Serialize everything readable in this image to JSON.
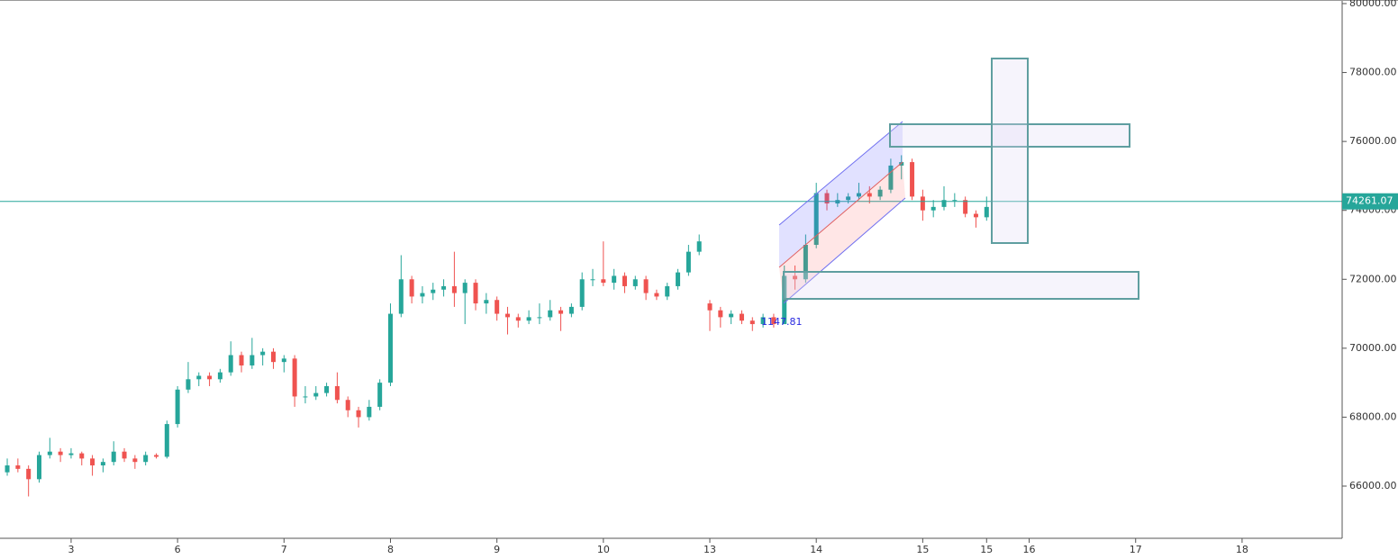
{
  "chart_data": {
    "type": "candlestick",
    "colors": {
      "up": "#26a69a",
      "down": "#ef5350",
      "price_line": "#26a69a"
    },
    "xlim": [
      -0.668,
      11.94
    ],
    "ylim": [
      64485,
      80104
    ],
    "xticks": [
      {
        "value": 0,
        "label": "3"
      },
      {
        "value": 1,
        "label": "6"
      },
      {
        "value": 2,
        "label": "7"
      },
      {
        "value": 3,
        "label": "8"
      },
      {
        "value": 4,
        "label": "9"
      },
      {
        "value": 5,
        "label": "10"
      },
      {
        "value": 6,
        "label": "13"
      },
      {
        "value": 7,
        "label": "14"
      },
      {
        "value": 8,
        "label": "15"
      },
      {
        "value": 8.6,
        "label": "15"
      },
      {
        "value": 9,
        "label": "16"
      },
      {
        "value": 10,
        "label": "17"
      },
      {
        "value": 11,
        "label": "18"
      }
    ],
    "yticks": [
      {
        "value": 66000,
        "label": "66000.00"
      },
      {
        "value": 68000,
        "label": "68000.00"
      },
      {
        "value": 70000,
        "label": "70000.00"
      },
      {
        "value": 72000,
        "label": "72000.00"
      },
      {
        "value": 74000,
        "label": "74000.00"
      },
      {
        "value": 76000,
        "label": "76000.00"
      },
      {
        "value": 78000,
        "label": "78000.00"
      },
      {
        "value": 80000,
        "label": "80000.00"
      }
    ],
    "last_price": 74261.07,
    "annotation": "1147.81",
    "x": [
      -0.6,
      -0.5,
      -0.4,
      -0.3,
      -0.2,
      -0.1,
      0,
      0.1,
      0.2,
      0.3,
      0.4,
      0.5,
      0.6,
      0.7,
      0.8,
      0.9,
      1,
      1.1,
      1.2,
      1.3,
      1.4,
      1.5,
      1.6,
      1.7,
      1.8,
      1.9,
      2,
      2.1,
      2.2,
      2.3,
      2.4,
      2.5,
      2.6,
      2.7,
      2.8,
      2.9,
      3,
      3.1,
      3.2,
      3.3,
      3.4,
      3.5,
      3.6,
      3.7,
      3.8,
      3.9,
      4,
      4.1,
      4.2,
      4.3,
      4.4,
      4.5,
      4.6,
      4.7,
      4.8,
      4.9,
      5,
      5.1,
      5.2,
      5.3,
      5.4,
      5.5,
      5.6,
      5.7,
      5.8,
      5.9,
      6,
      6.1,
      6.2,
      6.3,
      6.4,
      6.5,
      6.6,
      6.7,
      6.8,
      6.9,
      7,
      7.1,
      7.2,
      7.3,
      7.4,
      7.5,
      7.6,
      7.7,
      7.8,
      7.9,
      8,
      8.1,
      8.2,
      8.3,
      8.4,
      8.5,
      8.6
    ],
    "open": [
      66400,
      66600,
      66500,
      66200,
      66900,
      67000,
      66900,
      66950,
      66800,
      66600,
      66700,
      67000,
      66800,
      66700,
      66900,
      66850,
      67800,
      68800,
      69100,
      69200,
      69100,
      69300,
      69800,
      69500,
      69800,
      69900,
      69600,
      69700,
      68600,
      68600,
      68700,
      68900,
      68500,
      68200,
      68000,
      68300,
      69000,
      71000,
      72000,
      71500,
      71600,
      71700,
      71800,
      71600,
      71900,
      71300,
      71400,
      71000,
      70900,
      70800,
      70900,
      70900,
      71100,
      71000,
      71200,
      72000,
      72000,
      71900,
      72100,
      71800,
      72000,
      71600,
      71500,
      71800,
      72200,
      72800,
      71300,
      71100,
      70900,
      71000,
      70800,
      70700,
      70900,
      70700,
      72100,
      72000,
      73000,
      74500,
      74200,
      74300,
      74400,
      74500,
      74400,
      74600,
      75300,
      75400,
      74400,
      74000,
      74100,
      74300,
      74300,
      73900,
      73800
    ],
    "high": [
      66800,
      66800,
      66600,
      67000,
      67400,
      67100,
      67100,
      67000,
      66900,
      66800,
      67300,
      67100,
      66900,
      67000,
      66950,
      67900,
      68900,
      69600,
      69300,
      69300,
      69400,
      70200,
      69900,
      70300,
      70000,
      70000,
      69800,
      69800,
      68900,
      68900,
      69000,
      69300,
      68600,
      68300,
      68500,
      69100,
      71300,
      72700,
      72100,
      71800,
      71900,
      72000,
      72800,
      72000,
      72000,
      71600,
      71500,
      71200,
      71000,
      71100,
      71300,
      71400,
      71200,
      71300,
      72200,
      72300,
      73100,
      72300,
      72200,
      72100,
      72100,
      71700,
      71900,
      72300,
      73000,
      73300,
      71400,
      71200,
      71100,
      71100,
      70900,
      71000,
      71000,
      72400,
      72400,
      73300,
      74800,
      74600,
      74500,
      74500,
      74800,
      74700,
      74700,
      75500,
      75600,
      75500,
      74600,
      74300,
      74700,
      74500,
      74400,
      74000,
      74400
    ],
    "low": [
      66300,
      66400,
      65700,
      66100,
      66800,
      66700,
      66800,
      66600,
      66300,
      66400,
      66600,
      66700,
      66500,
      66600,
      66800,
      66800,
      67700,
      68700,
      68900,
      68900,
      69000,
      69200,
      69300,
      69400,
      69500,
      69400,
      69300,
      68300,
      68400,
      68500,
      68600,
      68400,
      68000,
      67700,
      67900,
      68200,
      68900,
      70900,
      71300,
      71300,
      71400,
      71500,
      71200,
      70700,
      71100,
      71000,
      70800,
      70400,
      70600,
      70700,
      70700,
      70800,
      70500,
      70900,
      71100,
      71800,
      71800,
      71700,
      71600,
      71700,
      71400,
      71400,
      71400,
      71700,
      72100,
      72700,
      70500,
      70600,
      70700,
      70700,
      70500,
      70600,
      70600,
      70700,
      71700,
      71900,
      72900,
      74000,
      74100,
      74200,
      74300,
      74200,
      74300,
      74500,
      74900,
      74300,
      73700,
      73800,
      74000,
      74100,
      73800,
      73500,
      73700
    ],
    "close": [
      66600,
      66500,
      66200,
      66900,
      67000,
      66900,
      66950,
      66800,
      66600,
      66700,
      67000,
      66800,
      66700,
      66900,
      66850,
      67800,
      68800,
      69100,
      69200,
      69100,
      69300,
      69800,
      69500,
      69800,
      69900,
      69600,
      69700,
      68600,
      68600,
      68700,
      68900,
      68500,
      68200,
      68000,
      68300,
      69000,
      71000,
      72000,
      71500,
      71600,
      71700,
      71800,
      71600,
      71900,
      71300,
      71400,
      71000,
      70900,
      70800,
      70900,
      70900,
      71100,
      71000,
      71200,
      72000,
      72000,
      71900,
      72100,
      71800,
      72000,
      71600,
      71500,
      71800,
      72200,
      72800,
      73100,
      71100,
      70900,
      71000,
      70800,
      70700,
      70900,
      70700,
      72100,
      72000,
      73000,
      74500,
      74200,
      74300,
      74400,
      74500,
      74400,
      74600,
      75300,
      75400,
      74400,
      74000,
      74100,
      74300,
      74300,
      73900,
      73800,
      74100
    ]
  }
}
